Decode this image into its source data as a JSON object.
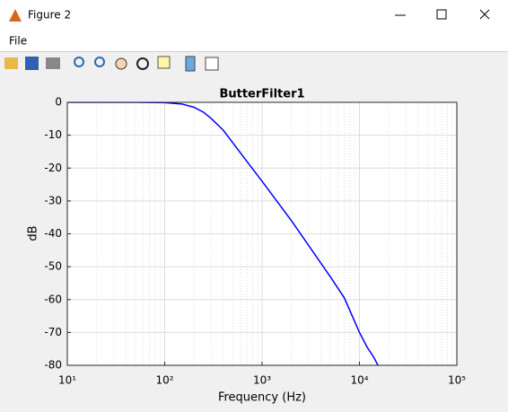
{
  "window": {
    "title": "Figure 2",
    "menu": [
      "File"
    ]
  },
  "chart_data": {
    "type": "line",
    "title": "ButterFilter1",
    "x_label": "Frequency (Hz)",
    "y_label": "dB",
    "x_scale": "log",
    "grid": true,
    "minor_grid": true,
    "xlim": [
      10,
      100000
    ],
    "xticks": [
      {
        "value": 10,
        "label": "10¹"
      },
      {
        "value": 100,
        "label": "10²"
      },
      {
        "value": 1000,
        "label": "10³"
      },
      {
        "value": 10000,
        "label": "10⁴"
      },
      {
        "value": 100000,
        "label": "10⁵"
      }
    ],
    "ylim": [
      -80,
      0
    ],
    "yticks": [
      0,
      -10,
      -20,
      -30,
      -40,
      -50,
      -60,
      -70,
      -80
    ],
    "x": [
      10,
      50,
      100,
      150,
      200,
      250,
      300,
      400,
      500,
      700,
      1000,
      2000,
      3000,
      5000,
      7000,
      10000,
      12000,
      14000,
      15500
    ],
    "series": [
      {
        "color": "#0000ff",
        "values": [
          0,
          0,
          -0.1,
          -0.5,
          -1.5,
          -3,
          -4.9,
          -8.5,
          -12.3,
          -18,
          -24,
          -36,
          -43.5,
          -53,
          -59.5,
          -70,
          -74.5,
          -77.5,
          -80
        ]
      }
    ]
  }
}
